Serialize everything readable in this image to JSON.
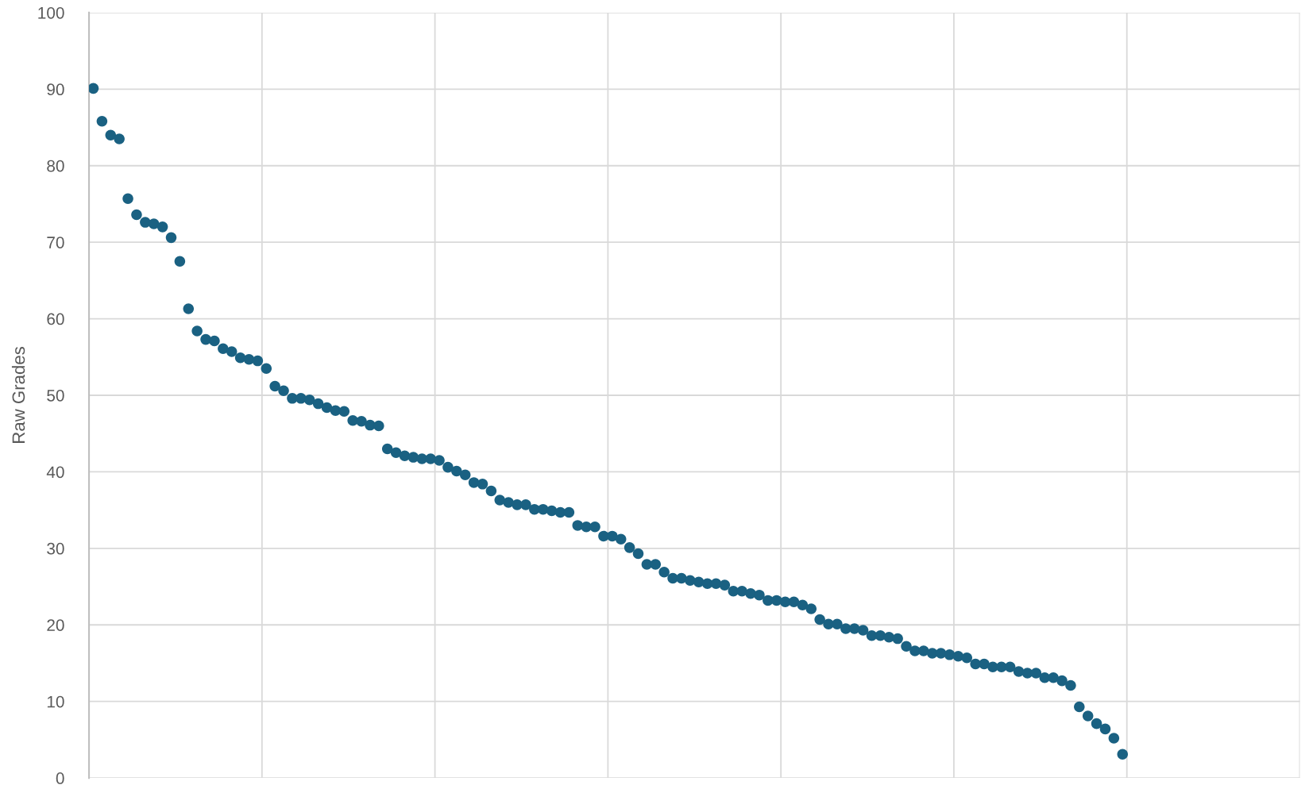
{
  "chart_data": {
    "type": "scatter",
    "ylabel": "Raw Grades",
    "color": "#1a6182",
    "marker": "circle",
    "grid": true,
    "tick_labels": "y",
    "ylim": [
      0,
      100
    ],
    "yticks": [
      0,
      10,
      20,
      30,
      40,
      50,
      60,
      70,
      80,
      90,
      100
    ],
    "categories": [
      null,
      null,
      null,
      null,
      null,
      null,
      null,
      null,
      null,
      null,
      null,
      null,
      null,
      null,
      null,
      null,
      null,
      null,
      null,
      null,
      null,
      null,
      null,
      null,
      null,
      null,
      null,
      null,
      null,
      null,
      null,
      null,
      null,
      null,
      null,
      null,
      null,
      null,
      null,
      null,
      null,
      null,
      null,
      null,
      null,
      null,
      null,
      null,
      null,
      null,
      null,
      null,
      null,
      null,
      null,
      null,
      null,
      null,
      null,
      null,
      null,
      null,
      null,
      null,
      null,
      null,
      null,
      null,
      null,
      null,
      null,
      null,
      null,
      null,
      null,
      null,
      null,
      null,
      null,
      null,
      null,
      null,
      null,
      null,
      null,
      null,
      null,
      null,
      null,
      null,
      null,
      null,
      null,
      null,
      null,
      null,
      null,
      null,
      null,
      null,
      null,
      null,
      null,
      null,
      null,
      null,
      null,
      null,
      null,
      null,
      null,
      null,
      null,
      null,
      null,
      null,
      null,
      null,
      null,
      null,
      null,
      null,
      null,
      null,
      null,
      null,
      null,
      null,
      null,
      null,
      null,
      null,
      null,
      null,
      null,
      null,
      null,
      null,
      null,
      null
    ],
    "values": [
      90.1,
      85.8,
      84.0,
      83.5,
      75.7,
      73.6,
      72.6,
      72.4,
      72.0,
      70.6,
      67.5,
      61.3,
      58.4,
      57.3,
      57.1,
      56.1,
      55.7,
      54.9,
      54.7,
      54.5,
      53.5,
      51.2,
      50.6,
      49.6,
      49.6,
      49.4,
      48.9,
      48.4,
      48.0,
      47.9,
      46.7,
      46.6,
      46.1,
      46.0,
      43.0,
      42.5,
      42.1,
      41.9,
      41.7,
      41.7,
      41.5,
      40.6,
      40.1,
      39.6,
      38.6,
      38.4,
      37.5,
      36.3,
      36.0,
      35.7,
      35.7,
      35.1,
      35.1,
      34.9,
      34.7,
      34.7,
      33.0,
      32.8,
      32.8,
      31.6,
      31.6,
      31.2,
      30.1,
      29.3,
      27.9,
      27.9,
      26.9,
      26.1,
      26.1,
      25.8,
      25.6,
      25.4,
      25.4,
      25.2,
      24.4,
      24.4,
      24.1,
      23.9,
      23.2,
      23.2,
      23.0,
      23.0,
      22.6,
      22.1,
      20.7,
      20.1,
      20.1,
      19.5,
      19.5,
      19.3,
      18.6,
      18.6,
      18.4,
      18.2,
      17.2,
      16.6,
      16.6,
      16.3,
      16.3,
      16.1,
      15.9,
      15.7,
      14.9,
      14.9,
      14.5,
      14.5,
      14.5,
      13.9,
      13.7,
      13.7,
      13.1,
      13.1,
      12.7,
      12.1,
      9.3,
      8.1,
      7.1,
      6.4,
      5.2,
      3.1,
      null,
      null,
      null,
      null,
      null,
      null,
      null,
      null,
      null,
      null,
      null,
      null,
      null,
      null,
      null,
      null,
      null,
      null,
      null,
      null
    ]
  }
}
